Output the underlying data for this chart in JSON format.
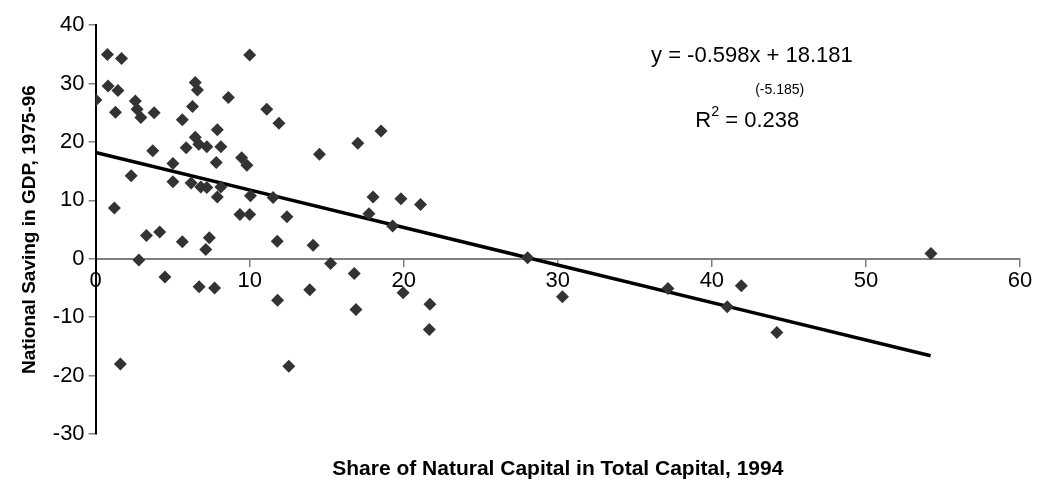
{
  "chart_data": {
    "type": "scatter",
    "xlabel": "Share of Natural Capital in Total Capital, 1994",
    "ylabel": "National Saving in GDP, 1975-96",
    "xlim": [
      0,
      60
    ],
    "xticks": [
      0,
      10,
      20,
      30,
      40,
      50,
      60
    ],
    "ylim": [
      -30,
      40
    ],
    "yticks": [
      -30,
      -20,
      -10,
      0,
      10,
      20,
      30,
      40
    ],
    "grid": false,
    "legend": false,
    "marker": "diamond",
    "annotations": [
      "y = -0.598x + 18.181",
      "(-5.185)",
      "R$^{2}$ = 0.238"
    ],
    "series": [
      {
        "color": "#333333",
        "x": [
          0.77,
          1.68,
          10.0,
          0.81,
          1.45,
          0.02,
          6.47,
          6.61,
          8.62,
          2.58,
          2.69,
          1.29,
          2.94,
          3.8,
          6.29,
          11.11,
          11.9,
          5.63,
          7.9,
          6.47,
          6.7,
          7.22,
          5.88,
          8.13,
          3.71,
          9.48,
          9.82,
          7.83,
          5.02,
          2.31,
          5.02,
          6.2,
          6.83,
          7.22,
          8.13,
          7.9,
          10.05,
          11.52,
          1.22,
          9.37,
          10.0,
          12.42,
          3.3,
          4.16,
          5.63,
          7.38,
          7.15,
          11.79,
          2.81,
          4.5,
          6.72,
          7.72,
          11.81,
          1.61,
          12.54,
          18.53,
          17.02,
          14.53,
          18.01,
          19.82,
          21.09,
          17.74,
          19.28,
          14.12,
          15.25,
          16.79,
          13.9,
          16.9,
          19.96,
          21.7,
          21.66,
          28.04,
          30.3,
          37.15,
          41.0,
          41.91,
          44.22,
          54.22
        ],
        "values": [
          35.0,
          34.3,
          34.9,
          29.6,
          28.8,
          27.2,
          30.2,
          28.9,
          27.6,
          27.0,
          25.6,
          25.1,
          24.2,
          25.0,
          26.1,
          25.6,
          23.2,
          23.8,
          22.1,
          20.8,
          19.6,
          19.2,
          19.0,
          19.2,
          18.5,
          17.3,
          16.0,
          16.5,
          16.3,
          14.2,
          13.2,
          13.0,
          12.3,
          12.2,
          12.3,
          10.6,
          10.8,
          10.5,
          8.7,
          7.6,
          7.6,
          7.2,
          4.0,
          4.6,
          2.9,
          3.6,
          1.6,
          3.0,
          -0.2,
          -3.1,
          -4.8,
          -5.0,
          -7.1,
          -18.0,
          -18.4,
          21.9,
          19.8,
          17.9,
          10.6,
          10.3,
          9.3,
          7.7,
          5.6,
          2.3,
          -0.8,
          -2.5,
          -5.3,
          -8.7,
          -5.8,
          -7.8,
          -12.1,
          0.2,
          -6.5,
          -5.1,
          -8.2,
          -4.6,
          -12.6,
          0.9
        ]
      },
      {
        "type": "line",
        "color": "#000000",
        "x": [
          0,
          54.2
        ],
        "values": [
          18.2,
          -16.6
        ],
        "marker": "none",
        "line_style": "solid"
      }
    ]
  }
}
